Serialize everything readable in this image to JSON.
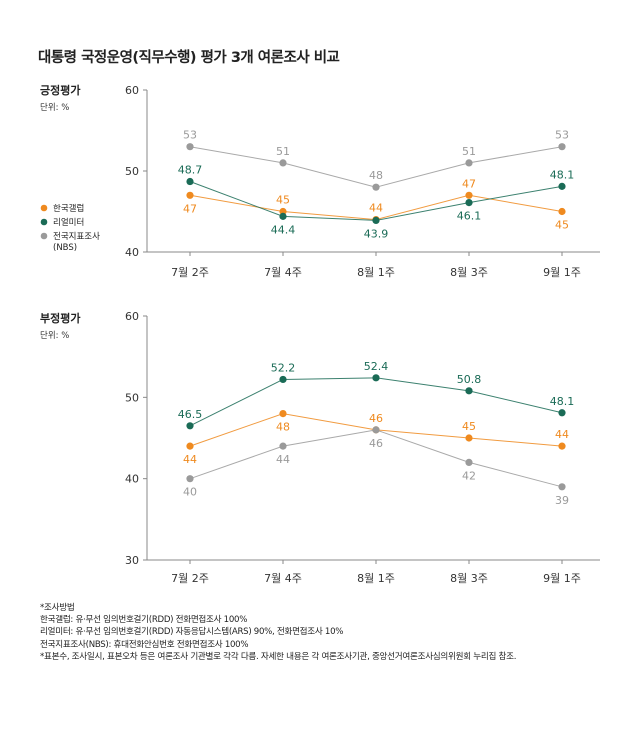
{
  "title": "대통령 국정운영(직무수행) 평가 3개 여론조사 비교",
  "colors": {
    "gallup": "#ef8a1f",
    "realmeter": "#1a6b56",
    "nbs": "#9a9a9a",
    "axis": "#888888",
    "grid": "#dddddd"
  },
  "legend": {
    "gallup": "한국갤럽",
    "realmeter": "리얼미터",
    "nbs_line1": "전국지표조사",
    "nbs_line2": "(NBS)"
  },
  "chart_data": [
    {
      "type": "line",
      "panel_title": "긍정평가",
      "unit_label": "단위: %",
      "categories": [
        "7월 2주",
        "7월 4주",
        "8월 1주",
        "8월 3주",
        "9월 1주"
      ],
      "ylim": [
        40,
        60
      ],
      "yticks": [
        40,
        50,
        60
      ],
      "legend_position": "left",
      "series": [
        {
          "key": "gallup",
          "name": "한국갤럽",
          "values": [
            47,
            45,
            44,
            47,
            45
          ],
          "labels": [
            "47",
            "45",
            "44",
            "47",
            "45"
          ],
          "label_pos": [
            "below",
            "above",
            "above",
            "above",
            "below"
          ]
        },
        {
          "key": "realmeter",
          "name": "리얼미터",
          "values": [
            48.7,
            44.4,
            43.9,
            46.1,
            48.1
          ],
          "labels": [
            "48.7",
            "44.4",
            "43.9",
            "46.1",
            "48.1"
          ],
          "label_pos": [
            "above",
            "below",
            "below",
            "below",
            "above"
          ]
        },
        {
          "key": "nbs",
          "name": "전국지표조사(NBS)",
          "values": [
            53,
            51,
            48,
            51,
            53
          ],
          "labels": [
            "53",
            "51",
            "48",
            "51",
            "53"
          ],
          "label_pos": [
            "above",
            "above",
            "above",
            "above",
            "above"
          ]
        }
      ]
    },
    {
      "type": "line",
      "panel_title": "부정평가",
      "unit_label": "단위: %",
      "categories": [
        "7월 2주",
        "7월 4주",
        "8월 1주",
        "8월 3주",
        "9월 1주"
      ],
      "ylim": [
        30,
        60
      ],
      "yticks": [
        30,
        40,
        50,
        60
      ],
      "series": [
        {
          "key": "gallup",
          "name": "한국갤럽",
          "values": [
            44,
            48,
            46,
            45,
            44
          ],
          "labels": [
            "44",
            "48",
            "46",
            "45",
            "44"
          ],
          "label_pos": [
            "below",
            "below",
            "above",
            "above",
            "above"
          ]
        },
        {
          "key": "realmeter",
          "name": "리얼미터",
          "values": [
            46.5,
            52.2,
            52.4,
            50.8,
            48.1
          ],
          "labels": [
            "46.5",
            "52.2",
            "52.4",
            "50.8",
            "48.1"
          ],
          "label_pos": [
            "above",
            "above",
            "above",
            "above",
            "above"
          ]
        },
        {
          "key": "nbs",
          "name": "전국지표조사(NBS)",
          "values": [
            40,
            44,
            46,
            42,
            39
          ],
          "labels": [
            "40",
            "44",
            "46",
            "42",
            "39"
          ],
          "label_pos": [
            "below",
            "below",
            "below",
            "below",
            "below"
          ]
        }
      ]
    }
  ],
  "notes": [
    "*조사방법",
    "한국갤럽: 유·무선 임의번호걸기(RDD) 전화면접조사 100%",
    "리얼미터: 유·무선 임의번호걸기(RDD) 자동응답시스템(ARS) 90%, 전화면접조사 10%",
    "전국지표조사(NBS): 휴대전화안심번호 전화면접조사 100%",
    "*표본수, 조사일시, 표본오차 등은 여론조사 기관별로 각각 다름. 자세한 내용은 각 여론조사기관, 중앙선거여론조사심의위원회 누리집 참조."
  ]
}
